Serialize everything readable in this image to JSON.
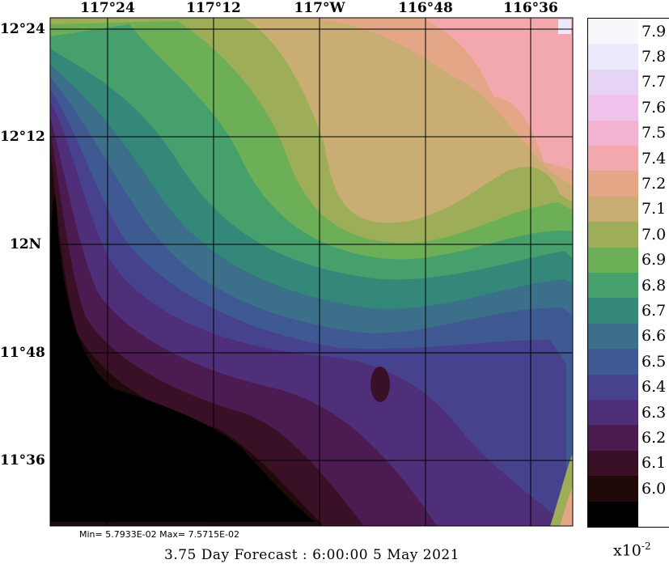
{
  "map": {
    "lon_ticks": [
      "117°24",
      "117°12",
      "117°W",
      "116°48",
      "116°36"
    ],
    "lat_ticks": [
      "12°24",
      "12°12",
      "12N",
      "11°48",
      "11°36"
    ]
  },
  "legend": {
    "levels": [
      {
        "label": "7.9",
        "color": "#f8f8fc"
      },
      {
        "label": "7.8",
        "color": "#eaeafc"
      },
      {
        "label": "7.7",
        "color": "#e6d4f6"
      },
      {
        "label": "7.6",
        "color": "#f0c2ec"
      },
      {
        "label": "7.5",
        "color": "#f3b4d4"
      },
      {
        "label": "7.4",
        "color": "#f2a8ac"
      },
      {
        "label": "7.2",
        "color": "#e3a686"
      },
      {
        "label": "7.1",
        "color": "#c9ad72"
      },
      {
        "label": "7.0",
        "color": "#9dad58"
      },
      {
        "label": "6.9",
        "color": "#6caf57"
      },
      {
        "label": "6.8",
        "color": "#45a06c"
      },
      {
        "label": "6.7",
        "color": "#348879"
      },
      {
        "label": "6.6",
        "color": "#3c708a"
      },
      {
        "label": "6.5",
        "color": "#3f5992"
      },
      {
        "label": "6.4",
        "color": "#47428d"
      },
      {
        "label": "6.3",
        "color": "#4f2e7a"
      },
      {
        "label": "6.2",
        "color": "#4c1b52"
      },
      {
        "label": "6.1",
        "color": "#3a1027"
      },
      {
        "label": "6.0",
        "color": "#1f0909"
      },
      {
        "label": "",
        "color": "#000000"
      }
    ],
    "scale_note": "x10",
    "scale_exp": "-2"
  },
  "minmax": "Min= 5.7933E-02  Max= 7.5715E-02",
  "footer": "3.75 Day Forecast :  6:00:00   5 May 2021"
}
